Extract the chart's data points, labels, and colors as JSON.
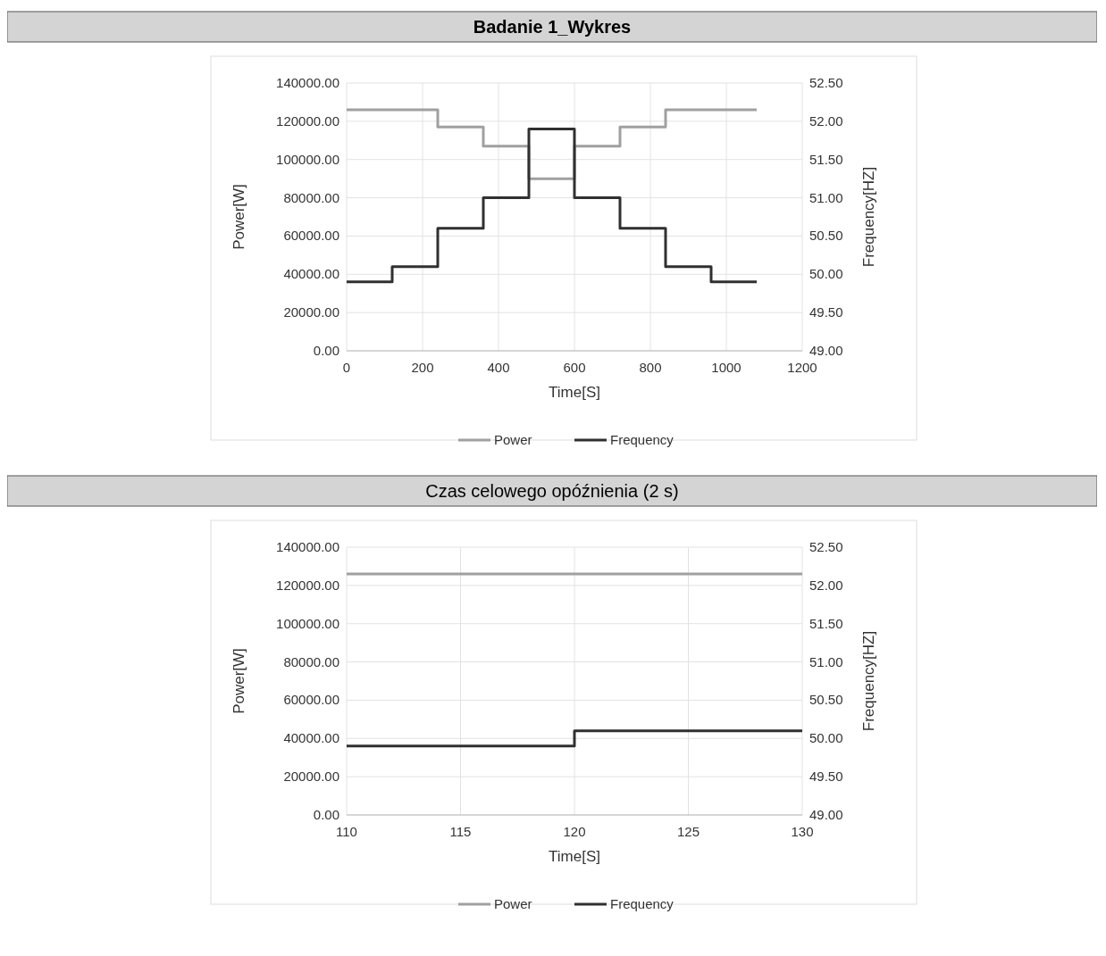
{
  "chart_data": [
    {
      "type": "step",
      "title": "Badanie 1_Wykres",
      "xlabel": "Time[S]",
      "ylabel": "Power[W]",
      "y2label": "Frequency[HZ]",
      "xlim": [
        0,
        1200
      ],
      "xticks": [
        0,
        200,
        400,
        600,
        800,
        1000,
        1200
      ],
      "ylim": [
        0,
        140000
      ],
      "yticks": [
        {
          "value": 0,
          "label": "0.00"
        },
        {
          "value": 20000,
          "label": "20000.00"
        },
        {
          "value": 40000,
          "label": "40000.00"
        },
        {
          "value": 60000,
          "label": "60000.00"
        },
        {
          "value": 80000,
          "label": "80000.00"
        },
        {
          "value": 100000,
          "label": "100000.00"
        },
        {
          "value": 120000,
          "label": "120000.00"
        },
        {
          "value": 140000,
          "label": "140000.00"
        }
      ],
      "y2lim": [
        49,
        52.5
      ],
      "y2ticks": [
        {
          "value": 49,
          "label": "49.00"
        },
        {
          "value": 49.5,
          "label": "49.50"
        },
        {
          "value": 50,
          "label": "50.00"
        },
        {
          "value": 50.5,
          "label": "50.50"
        },
        {
          "value": 51,
          "label": "51.00"
        },
        {
          "value": 51.5,
          "label": "51.50"
        },
        {
          "value": 52,
          "label": "52.00"
        },
        {
          "value": 52.5,
          "label": "52.50"
        }
      ],
      "grid": true,
      "legend": "bottom",
      "series": [
        {
          "name": "Power",
          "color": "#a0a0a0",
          "x": [
            0,
            240,
            360,
            480,
            600,
            720,
            840,
            1080
          ],
          "values": [
            126000,
            117000,
            107000,
            90000,
            107000,
            117000,
            126000,
            126000
          ]
        },
        {
          "name": "Frequency",
          "color": "#303030",
          "axis": "y2",
          "x": [
            0,
            120,
            240,
            360,
            480,
            600,
            720,
            840,
            960,
            1080
          ],
          "values": [
            49.9,
            50.1,
            50.6,
            51.0,
            51.9,
            51.0,
            50.6,
            50.1,
            49.9,
            49.9
          ]
        }
      ]
    },
    {
      "type": "step",
      "title": "Czas celowego opóźnienia (2 s)",
      "xlabel": "Time[S]",
      "ylabel": "Power[W]",
      "y2label": "Frequency[HZ]",
      "xlim": [
        110,
        130
      ],
      "xticks": [
        110,
        115,
        120,
        125,
        130
      ],
      "ylim": [
        0,
        140000
      ],
      "yticks": [
        {
          "value": 0,
          "label": "0.00"
        },
        {
          "value": 20000,
          "label": "20000.00"
        },
        {
          "value": 40000,
          "label": "40000.00"
        },
        {
          "value": 60000,
          "label": "60000.00"
        },
        {
          "value": 80000,
          "label": "80000.00"
        },
        {
          "value": 100000,
          "label": "100000.00"
        },
        {
          "value": 120000,
          "label": "120000.00"
        },
        {
          "value": 140000,
          "label": "140000.00"
        }
      ],
      "y2lim": [
        49,
        52.5
      ],
      "y2ticks": [
        {
          "value": 49,
          "label": "49.00"
        },
        {
          "value": 49.5,
          "label": "49.50"
        },
        {
          "value": 50,
          "label": "50.00"
        },
        {
          "value": 50.5,
          "label": "50.50"
        },
        {
          "value": 51,
          "label": "51.00"
        },
        {
          "value": 51.5,
          "label": "51.50"
        },
        {
          "value": 52,
          "label": "52.00"
        },
        {
          "value": 52.5,
          "label": "52.50"
        }
      ],
      "grid": true,
      "legend": "bottom",
      "series": [
        {
          "name": "Power",
          "color": "#a0a0a0",
          "x": [
            110,
            130
          ],
          "values": [
            126000,
            126000
          ]
        },
        {
          "name": "Frequency",
          "color": "#303030",
          "axis": "y2",
          "x": [
            110,
            120,
            130
          ],
          "values": [
            49.9,
            50.1,
            50.1
          ]
        }
      ]
    }
  ]
}
